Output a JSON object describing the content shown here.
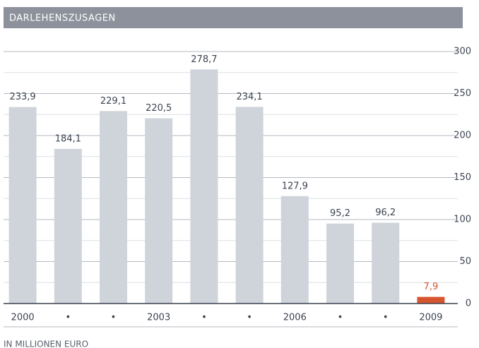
{
  "chart_data": {
    "type": "bar",
    "title": "DARLEHENSZUSAGEN",
    "categories": [
      "2000",
      "•",
      "•",
      "2003",
      "•",
      "•",
      "2006",
      "•",
      "•",
      "2009"
    ],
    "values": [
      233.9,
      184.1,
      229.1,
      220.5,
      278.7,
      234.1,
      127.9,
      95.2,
      96.2,
      7.9
    ],
    "value_labels": [
      "233,9",
      "184,1",
      "229,1",
      "220,5",
      "278,7",
      "234,1",
      "127,9",
      "95,2",
      "96,2",
      "7,9"
    ],
    "colors": [
      "#cfd3da",
      "#cfd3da",
      "#cfd3da",
      "#cfd3da",
      "#cfd3da",
      "#cfd3da",
      "#cfd3da",
      "#cfd3da",
      "#cfd3da",
      "#d6552e"
    ],
    "ylim": [
      0,
      300
    ],
    "yticks": [
      0,
      50,
      100,
      150,
      200,
      250,
      300
    ],
    "grid": true,
    "note": "IN MILLIONEN EURO"
  }
}
